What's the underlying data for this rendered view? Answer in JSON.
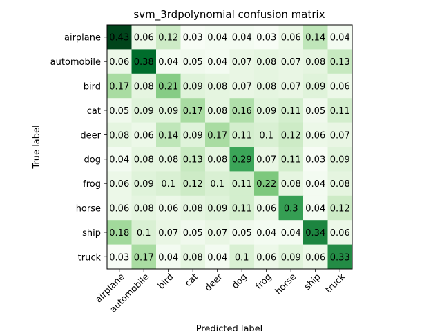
{
  "chart_data": {
    "type": "heatmap",
    "title": "svm_3rdpolynomial confusion matrix",
    "xlabel": "Predicted label",
    "ylabel": "True label",
    "x_categories": [
      "airplane",
      "automobile",
      "bird",
      "cat",
      "deer",
      "dog",
      "frog",
      "horse",
      "ship",
      "truck"
    ],
    "y_categories": [
      "airplane",
      "automobile",
      "bird",
      "cat",
      "deer",
      "dog",
      "frog",
      "horse",
      "ship",
      "truck"
    ],
    "colormap": "Greens",
    "values": [
      [
        0.43,
        0.06,
        0.12,
        0.03,
        0.04,
        0.04,
        0.03,
        0.06,
        0.14,
        0.04
      ],
      [
        0.06,
        0.38,
        0.04,
        0.05,
        0.04,
        0.07,
        0.08,
        0.07,
        0.08,
        0.13
      ],
      [
        0.17,
        0.08,
        0.21,
        0.09,
        0.08,
        0.07,
        0.08,
        0.07,
        0.09,
        0.06
      ],
      [
        0.05,
        0.09,
        0.09,
        0.17,
        0.08,
        0.16,
        0.09,
        0.11,
        0.05,
        0.11
      ],
      [
        0.08,
        0.06,
        0.14,
        0.09,
        0.17,
        0.11,
        0.1,
        0.12,
        0.06,
        0.07
      ],
      [
        0.04,
        0.08,
        0.08,
        0.13,
        0.08,
        0.29,
        0.07,
        0.11,
        0.03,
        0.09
      ],
      [
        0.06,
        0.09,
        0.1,
        0.12,
        0.1,
        0.11,
        0.22,
        0.08,
        0.04,
        0.08
      ],
      [
        0.06,
        0.08,
        0.06,
        0.08,
        0.09,
        0.11,
        0.06,
        0.3,
        0.04,
        0.12
      ],
      [
        0.18,
        0.1,
        0.07,
        0.05,
        0.07,
        0.05,
        0.04,
        0.04,
        0.34,
        0.06
      ],
      [
        0.03,
        0.17,
        0.04,
        0.08,
        0.04,
        0.1,
        0.06,
        0.09,
        0.06,
        0.33
      ]
    ]
  }
}
